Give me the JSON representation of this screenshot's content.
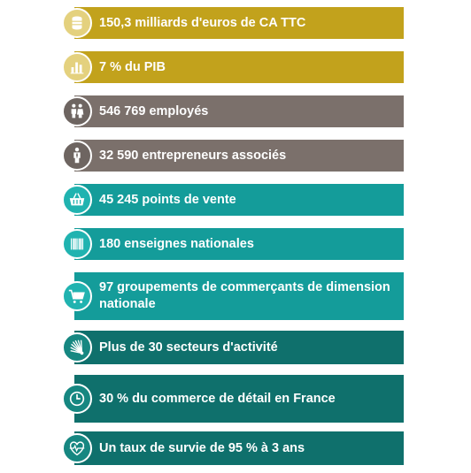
{
  "colors": {
    "gold": "#C2A21C",
    "gold_icon": "#E4D17E",
    "grey": "#7B706B",
    "grey_icon": "#6E6561",
    "teal": "#149C9A",
    "teal_icon": "#20B3B0",
    "dark_teal": "#0F706C",
    "dark_teal_icon": "#168781"
  },
  "items": [
    {
      "text": "150,3 milliards d'euros de CA TTC",
      "icon": "coins-icon",
      "color": "gold"
    },
    {
      "text": "7 % du PIB",
      "icon": "bar-chart-icon",
      "color": "gold"
    },
    {
      "text": "546 769 employés",
      "icon": "people-icon",
      "color": "grey"
    },
    {
      "text": "32 590 entrepreneurs associés",
      "icon": "businessman-icon",
      "color": "grey"
    },
    {
      "text": "45 245 points de vente",
      "icon": "basket-icon",
      "color": "teal"
    },
    {
      "text": "180 enseignes nationales",
      "icon": "barcode-icon",
      "color": "teal"
    },
    {
      "text": "97 groupements de commerçants de dimension nationale",
      "icon": "cart-icon",
      "color": "teal"
    },
    {
      "text": "Plus de 30 secteurs d'activité",
      "icon": "fan-icon",
      "color": "dark_teal"
    },
    {
      "text": "30 % du commerce de détail en France",
      "icon": "clock-icon",
      "color": "dark_teal"
    },
    {
      "text": "Un taux de survie de 95 % à 3 ans",
      "icon": "heartbeat-icon",
      "color": "dark_teal"
    }
  ]
}
